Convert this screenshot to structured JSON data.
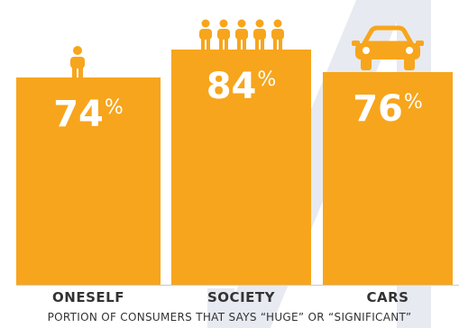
{
  "chart_data": {
    "type": "bar",
    "categories": [
      "ONESELF",
      "SOCIETY",
      "CARS"
    ],
    "values": [
      74,
      84,
      76
    ],
    "value_unit": "%",
    "icons": [
      "person-icon",
      "group-of-people-icon",
      "car-icon"
    ],
    "caption": "PORTION OF CONSUMERS THAT SAYS “HUGE” OR “SIGNIFICANT”",
    "grid": false,
    "legend": "none"
  },
  "colors": {
    "bar": "#F7A51C",
    "background_stripe": "#E7EAF1",
    "label_text": "#333333",
    "value_text": "#FFFFFF"
  }
}
